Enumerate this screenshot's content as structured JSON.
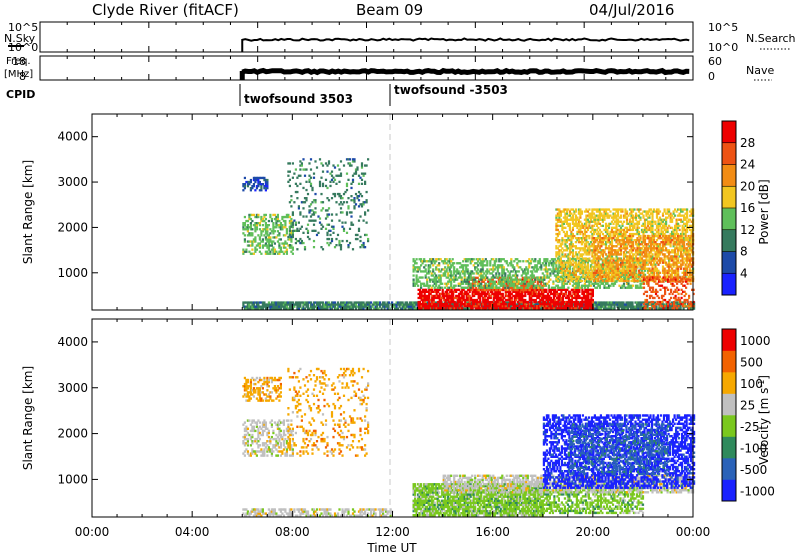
{
  "header": {
    "station": "Clyde River (fitACF)",
    "beam": "Beam 09",
    "date": "04/Jul/2016"
  },
  "strips": {
    "nsky": {
      "label": "N.Sky",
      "tick_top": "10^5",
      "tick_bottom": "10^0",
      "right_label": "N.Search",
      "right_tick_top": "10^5",
      "right_tick_bottom": "10^0"
    },
    "freq": {
      "label_line1": "Freq.",
      "label_line2": "[MHz]",
      "tick_top": "18",
      "tick_bottom": "8",
      "right_label": "Nave",
      "right_tick_top": "60",
      "right_tick_bottom": "0"
    },
    "cpid": {
      "label": "CPID",
      "segments": [
        {
          "start_hour": 6.0,
          "label": "twofsound 3503"
        },
        {
          "start_hour": 12.0,
          "label": "twofsound -3503"
        }
      ]
    }
  },
  "chart_data": [
    {
      "type": "heatmap",
      "name": "power",
      "ylabel": "Slant Range [km]",
      "xlabel": "",
      "xlim": [
        0,
        24
      ],
      "ylim": [
        180,
        4500
      ],
      "yticks": [
        1000,
        2000,
        3000,
        4000
      ],
      "colorbar": {
        "label": "Power [dB]",
        "levels": [
          "4",
          "8",
          "12",
          "16",
          "20",
          "24",
          "28"
        ],
        "colors": [
          "#1a22ff",
          "#1d4aa8",
          "#367a5e",
          "#5fbf5a",
          "#f2c620",
          "#f28c14",
          "#ee5314",
          "#ee0000"
        ]
      },
      "scatter_regions": [
        {
          "t0": 6.0,
          "t1": 24.0,
          "r0": 190,
          "r1": 350,
          "level": 2,
          "density": 0.85
        },
        {
          "t0": 13.0,
          "t1": 20.0,
          "r0": 200,
          "r1": 650,
          "level": 7,
          "density": 0.75
        },
        {
          "t0": 15.0,
          "t1": 18.0,
          "r0": 600,
          "r1": 900,
          "level": 6,
          "density": 0.6
        },
        {
          "t0": 12.8,
          "t1": 22.0,
          "r0": 650,
          "r1": 1300,
          "level": 3,
          "density": 0.5
        },
        {
          "t0": 6.0,
          "t1": 8.0,
          "r0": 1400,
          "r1": 2300,
          "level": 3,
          "density": 0.45
        },
        {
          "t0": 6.0,
          "t1": 7.0,
          "r0": 2800,
          "r1": 3100,
          "level": 1,
          "density": 0.5
        },
        {
          "t0": 7.8,
          "t1": 11.0,
          "r0": 1500,
          "r1": 3500,
          "level": 2,
          "density": 0.15
        },
        {
          "t0": 18.5,
          "t1": 24.0,
          "r0": 800,
          "r1": 2400,
          "level": 4,
          "density": 0.55
        },
        {
          "t0": 20.0,
          "t1": 24.0,
          "r0": 800,
          "r1": 1800,
          "level": 5,
          "density": 0.35
        },
        {
          "t0": 22.0,
          "t1": 24.0,
          "r0": 200,
          "r1": 900,
          "level": 6,
          "density": 0.35
        }
      ]
    },
    {
      "type": "heatmap",
      "name": "velocity",
      "ylabel": "Slant Range [km]",
      "xlabel": "Time UT",
      "xlim": [
        0,
        24
      ],
      "ylim": [
        180,
        4500
      ],
      "yticks": [
        1000,
        2000,
        3000,
        4000
      ],
      "xticks": [
        "00:00",
        "04:00",
        "08:00",
        "12:00",
        "16:00",
        "20:00",
        "00:00"
      ],
      "colorbar": {
        "label": "Velocity [m s^-1]",
        "levels": [
          "1000",
          "500",
          "100",
          "25",
          "-25",
          "-100",
          "-500",
          "-1000"
        ],
        "colors": [
          "#1a22ff",
          "#2a62b8",
          "#2f8a5c",
          "#7ac81e",
          "#c0c0c0",
          "#f6a800",
          "#f26200",
          "#ee0000"
        ]
      },
      "scatter_regions": [
        {
          "t0": 6.0,
          "t1": 12.0,
          "r0": 190,
          "r1": 330,
          "level": 4,
          "density": 0.55
        },
        {
          "t0": 12.8,
          "t1": 18.0,
          "r0": 200,
          "r1": 900,
          "level": 3,
          "density": 0.8
        },
        {
          "t0": 18.0,
          "t1": 22.0,
          "r0": 250,
          "r1": 800,
          "level": 3,
          "density": 0.5
        },
        {
          "t0": 14.0,
          "t1": 24.0,
          "r0": 700,
          "r1": 1100,
          "level": 4,
          "density": 0.6
        },
        {
          "t0": 6.0,
          "t1": 8.0,
          "r0": 1500,
          "r1": 2300,
          "level": 4,
          "density": 0.45
        },
        {
          "t0": 6.0,
          "t1": 7.5,
          "r0": 2700,
          "r1": 3200,
          "level": 5,
          "density": 0.4
        },
        {
          "t0": 7.8,
          "t1": 11.0,
          "r0": 1500,
          "r1": 3400,
          "level": 5,
          "density": 0.15
        },
        {
          "t0": 18.0,
          "t1": 24.0,
          "r0": 800,
          "r1": 2400,
          "level": 0,
          "density": 0.55
        },
        {
          "t0": 19.0,
          "t1": 23.0,
          "r0": 1100,
          "r1": 2200,
          "level": 1,
          "density": 0.35
        }
      ]
    }
  ]
}
